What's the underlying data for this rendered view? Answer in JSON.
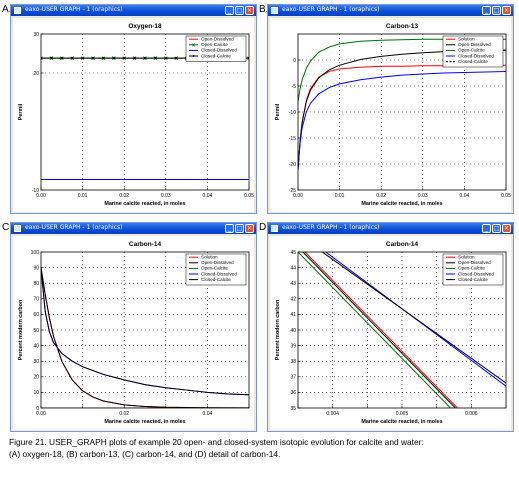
{
  "figure": {
    "caption_line1": "Figure 21. USER_GRAPH plots of example 20 open- and closed-system isotopic evolution for calcite and water:",
    "caption_line2": "(A) oxygen-18, (B) carbon-13, (C) carbon-14, and (D) detail of carbon-14."
  },
  "window": {
    "title": "eaxo-USER GRAPH - 1 (oraphics)"
  },
  "chart_data": [
    {
      "panel": "A.",
      "type": "line",
      "title": "Oxygen-18",
      "xlabel": "Marine calcite reacted, in moles",
      "ylabel": "Permil",
      "xlim": [
        0,
        0.05
      ],
      "ylim": [
        -10,
        30
      ],
      "xticks": [
        0,
        0.01,
        0.02,
        0.03,
        0.04,
        0.05
      ],
      "xtick_labels": [
        "0.00",
        "0.01",
        "0.02",
        "0.03",
        "0.04",
        "0.05"
      ],
      "yticks": [
        -10,
        20,
        30
      ],
      "ytick_labels": [
        "-10",
        "20",
        "30"
      ],
      "legend": "top-right",
      "grid": true,
      "series": [
        {
          "name": "Open-Dissolved",
          "color": "#ff0000",
          "marker": "none",
          "x": [
            0,
            0.05
          ],
          "y": [
            -7.3,
            -7.3
          ]
        },
        {
          "name": "Open-Calcite",
          "color": "#007000",
          "marker": "x",
          "x": [
            0,
            0.0025,
            0.005,
            0.0075,
            0.01,
            0.0125,
            0.015,
            0.0175,
            0.02,
            0.0225,
            0.025,
            0.0275,
            0.03,
            0.0325,
            0.035,
            0.0375,
            0.04,
            0.0425,
            0.045,
            0.0475,
            0.05
          ],
          "y": [
            23.8,
            23.8,
            23.8,
            23.8,
            23.8,
            23.8,
            23.8,
            23.8,
            23.8,
            23.8,
            23.8,
            23.8,
            23.8,
            23.8,
            23.8,
            23.8,
            23.8,
            23.8,
            23.8,
            23.8,
            23.8
          ]
        },
        {
          "name": "Closed-Dissolved",
          "color": "#0000ff",
          "marker": "none",
          "x": [
            0,
            0.05
          ],
          "y": [
            -7.3,
            -7.3
          ]
        },
        {
          "name": "Closed-Calcite",
          "color": "#000000",
          "marker": "dot",
          "x": [
            0,
            0.0025,
            0.005,
            0.0075,
            0.01,
            0.0125,
            0.015,
            0.0175,
            0.02,
            0.0225,
            0.025,
            0.0275,
            0.03,
            0.0325,
            0.035,
            0.0375,
            0.04,
            0.0425,
            0.045,
            0.0475,
            0.05
          ],
          "y": [
            23.8,
            23.8,
            23.8,
            23.8,
            23.8,
            23.8,
            23.8,
            23.8,
            23.8,
            23.8,
            23.8,
            23.8,
            23.8,
            23.8,
            23.8,
            23.8,
            23.8,
            23.8,
            23.8,
            23.8,
            23.8
          ]
        }
      ]
    },
    {
      "panel": "B.",
      "type": "line",
      "title": "Carbon-13",
      "xlabel": "Marine calcite reacted, in moles",
      "ylabel": "Permil",
      "xlim": [
        0,
        0.05
      ],
      "ylim": [
        -25,
        5
      ],
      "xticks": [
        0,
        0.01,
        0.02,
        0.03,
        0.04,
        0.05
      ],
      "xtick_labels": [
        "0.00",
        "0.01",
        "0.02",
        "0.03",
        "0.04",
        "0.05"
      ],
      "yticks": [
        -25,
        -20,
        -15,
        -10,
        -5,
        0
      ],
      "ytick_labels": [
        "-25",
        "-20",
        "-15",
        "-10",
        "-5",
        "0"
      ],
      "legend": "top-right",
      "grid": true,
      "series": [
        {
          "name": "Solution",
          "color": "#ff0000",
          "marker": "none",
          "x": [
            0,
            0.0005,
            0.001,
            0.002,
            0.003,
            0.005,
            0.0075,
            0.01,
            0.015,
            0.02,
            0.025,
            0.03,
            0.035,
            0.04,
            0.045,
            0.05
          ],
          "y": [
            -21,
            -15.5,
            -12,
            -7.8,
            -5.5,
            -3.3,
            -2.2,
            -1.7,
            -1.4,
            -1.2,
            -1.2,
            -1.1,
            -1.1,
            -1.1,
            -1.0,
            -1.0
          ]
        },
        {
          "name": "Open-Dissolved",
          "color": "#000000",
          "marker": "none",
          "x": [
            0,
            0.0005,
            0.001,
            0.002,
            0.003,
            0.005,
            0.0075,
            0.01,
            0.015,
            0.02,
            0.025,
            0.03,
            0.035,
            0.04,
            0.045,
            0.05
          ],
          "y": [
            -21,
            -15.5,
            -12,
            -8,
            -5.8,
            -3.4,
            -1.9,
            -1.0,
            0.1,
            0.7,
            1.1,
            1.4,
            1.6,
            1.7,
            1.8,
            1.9
          ]
        },
        {
          "name": "Open-Calcite",
          "color": "#007000",
          "marker": "none",
          "x": [
            0,
            0.0005,
            0.001,
            0.002,
            0.003,
            0.005,
            0.0075,
            0.01,
            0.015,
            0.02,
            0.025,
            0.03,
            0.035,
            0.04,
            0.045,
            0.05
          ],
          "y": [
            -8,
            -5.5,
            -3.8,
            -1.6,
            -0.2,
            1.5,
            2.5,
            3.1,
            3.6,
            3.8,
            3.9,
            4.0,
            4.0,
            4.0,
            4.0,
            4.0
          ]
        },
        {
          "name": "Closed-Dissolved",
          "color": "#0000ff",
          "marker": "none",
          "x": [
            0,
            0.0005,
            0.001,
            0.002,
            0.003,
            0.005,
            0.0075,
            0.01,
            0.015,
            0.02,
            0.025,
            0.03,
            0.035,
            0.04,
            0.045,
            0.05
          ],
          "y": [
            -21,
            -16,
            -13,
            -10,
            -8.3,
            -6.5,
            -5.3,
            -4.6,
            -3.8,
            -3.3,
            -2.9,
            -2.7,
            -2.5,
            -2.4,
            -2.3,
            -2.2
          ]
        },
        {
          "name": "Closed-Calcite",
          "color": "#000000",
          "marker": "dashed",
          "x": [
            0.035,
            0.05
          ],
          "y": [
            1.6,
            1.9
          ]
        }
      ]
    },
    {
      "panel": "C.",
      "type": "line",
      "title": "Carbon-14",
      "xlabel": "Marine calcite reacted, in moles",
      "ylabel": "Percent modern carbon",
      "xlim": [
        0,
        0.05
      ],
      "ylim": [
        0,
        100
      ],
      "xticks": [
        0,
        0.01,
        0.02,
        0.03,
        0.04,
        0.05
      ],
      "xtick_labels": [
        "0.00",
        "",
        "0.02",
        "",
        "0.04",
        ""
      ],
      "yticks": [
        0,
        10,
        20,
        30,
        40,
        50,
        60,
        70,
        80,
        90,
        100
      ],
      "ytick_labels": [
        "0",
        "10",
        "20",
        "30",
        "40",
        "50",
        "60",
        "70",
        "80",
        "90",
        "100"
      ],
      "legend": "top-right",
      "grid": true,
      "series": [
        {
          "name": "Solution",
          "color": "#ff0000",
          "marker": "none",
          "x": [
            0,
            0.001,
            0.002,
            0.003,
            0.005,
            0.0075,
            0.01,
            0.0125,
            0.015,
            0.02,
            0.025,
            0.03,
            0.04,
            0.05
          ],
          "y": [
            90,
            73,
            58,
            46,
            30,
            18,
            11,
            7,
            4.5,
            2,
            1,
            0.5,
            0.2,
            0.1
          ]
        },
        {
          "name": "Open-Dissolved",
          "color": "#000000",
          "marker": "none",
          "x": [
            0,
            0.001,
            0.002,
            0.003,
            0.005,
            0.0075,
            0.01,
            0.0125,
            0.015,
            0.02,
            0.025,
            0.03,
            0.04,
            0.05
          ],
          "y": [
            90,
            73,
            58,
            46,
            30,
            18,
            11,
            7,
            4.5,
            2,
            1,
            0.5,
            0.2,
            0.1
          ]
        },
        {
          "name": "Open-Calcite",
          "color": "#007000",
          "marker": "none",
          "x": [
            0,
            0.001,
            0.002,
            0.003,
            0.005,
            0.0075,
            0.01,
            0.0125,
            0.015,
            0.02,
            0.025,
            0.03,
            0.04,
            0.05
          ],
          "y": [
            0,
            0,
            0,
            0,
            0,
            0,
            0,
            0,
            0,
            0,
            0,
            0,
            0,
            0
          ]
        },
        {
          "name": "Closed-Dissolved",
          "color": "#0000ff",
          "marker": "none",
          "x": [
            0,
            0.001,
            0.002,
            0.003,
            0.005,
            0.0075,
            0.01,
            0.0125,
            0.015,
            0.02,
            0.025,
            0.03,
            0.035,
            0.04,
            0.045,
            0.05
          ],
          "y": [
            90,
            62,
            49,
            42,
            35,
            30,
            26.5,
            24,
            21.5,
            18,
            15,
            13,
            11.5,
            10,
            9,
            8.5
          ]
        },
        {
          "name": "Closed-Calcite",
          "color": "#000000",
          "marker": "none",
          "x": [
            0,
            0.001,
            0.002,
            0.003,
            0.005,
            0.0075,
            0.01,
            0.0125,
            0.015,
            0.02,
            0.025,
            0.03,
            0.035,
            0.04,
            0.045,
            0.05
          ],
          "y": [
            90,
            62,
            49,
            42,
            35,
            30,
            26.5,
            24,
            21.5,
            18,
            15,
            13,
            11.5,
            10,
            9,
            8.5
          ]
        }
      ]
    },
    {
      "panel": "D.",
      "type": "line",
      "title": "Carbon-14",
      "xlabel": "Marine calcite reacted, in moles",
      "ylabel": "Percent modern carbon",
      "xlim": [
        0.0035,
        0.0065
      ],
      "ylim": [
        35,
        45
      ],
      "xticks": [
        0.0035,
        0.004,
        0.0045,
        0.005,
        0.0055,
        0.006,
        0.0065
      ],
      "xtick_labels": [
        "",
        "0.004",
        "",
        "0.005",
        "",
        "0.006",
        ""
      ],
      "yticks": [
        35,
        36,
        37,
        38,
        39,
        40,
        41,
        42,
        43,
        44,
        45
      ],
      "ytick_labels": [
        "35",
        "36",
        "37",
        "38",
        "39",
        "40",
        "41",
        "42",
        "43",
        "44",
        "45"
      ],
      "legend": "top-right",
      "grid": true,
      "series": [
        {
          "name": "Solution",
          "color": "#ff0000",
          "marker": "none",
          "x": [
            0.0036,
            0.0058
          ],
          "y": [
            45,
            35
          ]
        },
        {
          "name": "Open-Dissolved",
          "color": "#000000",
          "marker": "none",
          "x": [
            0.00357,
            0.00577
          ],
          "y": [
            45,
            35
          ]
        },
        {
          "name": "Open-Calcite",
          "color": "#007000",
          "marker": "none",
          "x": [
            0.0035,
            0.0057
          ],
          "y": [
            45,
            35
          ]
        },
        {
          "name": "Closed-Dissolved",
          "color": "#0000ff",
          "marker": "none",
          "x": [
            0.0039,
            0.0065
          ],
          "y": [
            45,
            36.4
          ]
        },
        {
          "name": "Closed-Calcite",
          "color": "#000000",
          "marker": "none",
          "x": [
            0.00385,
            0.0065
          ],
          "y": [
            45,
            36.6
          ]
        }
      ]
    }
  ]
}
